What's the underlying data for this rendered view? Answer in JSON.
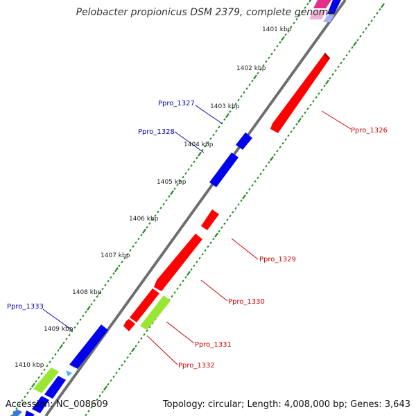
{
  "title": "Pelobacter propionicus DSM 2379, complete genome",
  "footer": {
    "accession": "Accession: NC_008609",
    "topology": "Topology: circular; Length: 4,008,000 bp; Genes: 3,643"
  },
  "colors": {
    "backbone": "#808080",
    "tick": "#1e8a1e",
    "forward_gene": "#0000ee",
    "reverse_gene": "#ee0000",
    "rna_gene": "#99e633",
    "forward_label": "#0000aa",
    "reverse_label": "#cc0000"
  },
  "kbp_ticks": [
    "1401 kbp",
    "1402 kbp",
    "1403 kbp",
    "1404 kbp",
    "1405 kbp",
    "1406 kbp",
    "1407 kbp",
    "1408 kbp",
    "1409 kbp",
    "1410 kbp"
  ],
  "gene_labels": {
    "Ppro_1326": "Ppro_1326",
    "Ppro_1327": "Ppro_1327",
    "Ppro_1328": "Ppro_1328",
    "Ppro_1329": "Ppro_1329",
    "Ppro_1330": "Ppro_1330",
    "Ppro_1331": "Ppro_1331",
    "Ppro_1332": "Ppro_1332",
    "Ppro_1333": "Ppro_1333"
  }
}
